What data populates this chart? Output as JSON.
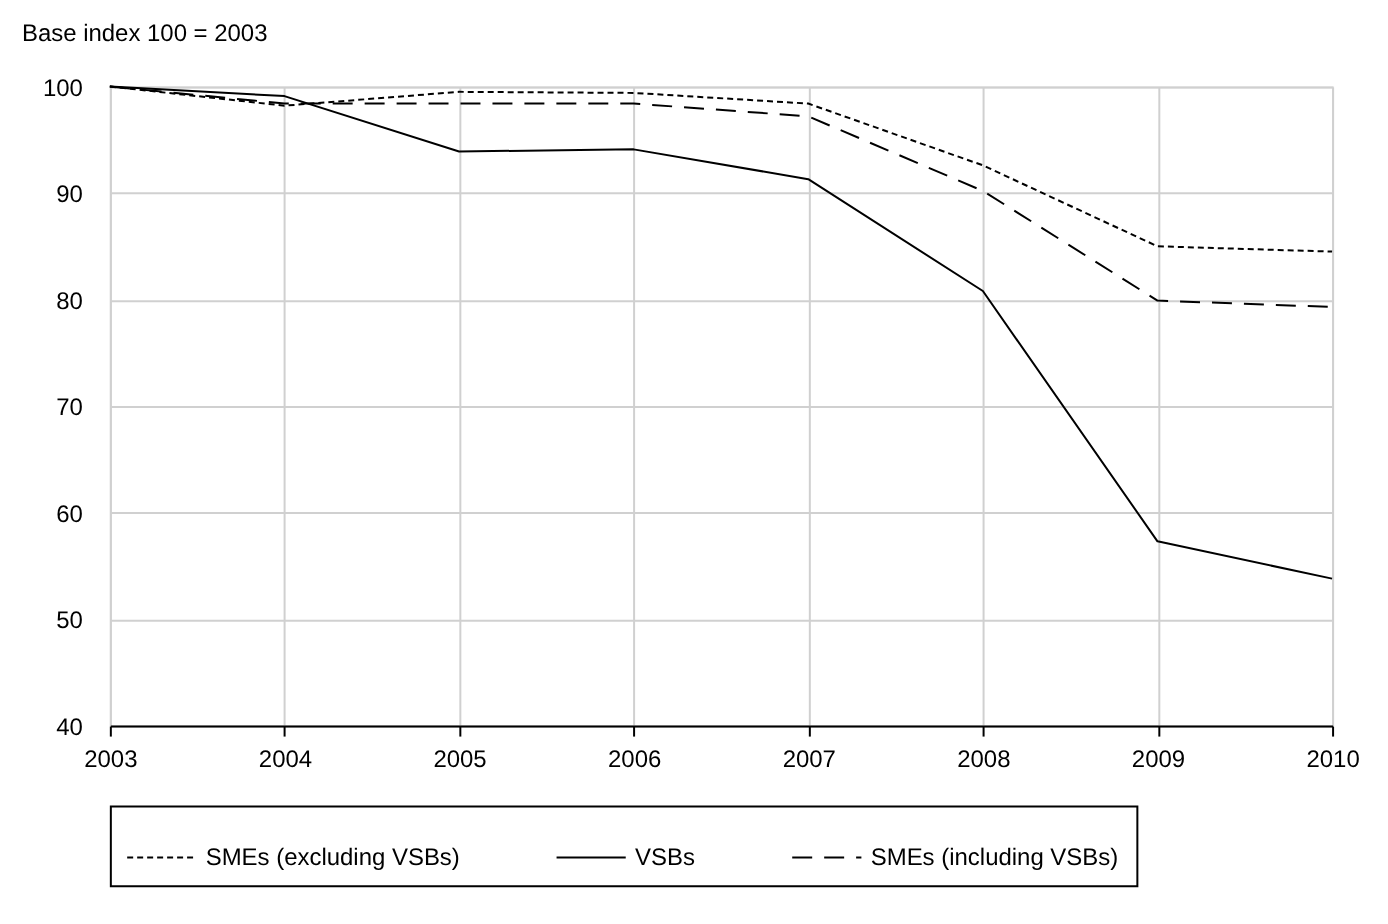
{
  "chart_data": {
    "type": "line",
    "title": "Base index 100 = 2003",
    "x": [
      2003,
      2004,
      2005,
      2006,
      2007,
      2008,
      2009,
      2010
    ],
    "series": [
      {
        "name": "SMEs (excluding VSBs)",
        "color": "#000000",
        "line_style": "dotted",
        "values": [
          100,
          98.2,
          99.5,
          99.4,
          98.4,
          92.6,
          85.0,
          84.5
        ]
      },
      {
        "name": "VSBs",
        "color": "#000000",
        "line_style": "solid",
        "values": [
          100,
          99.1,
          93.9,
          94.1,
          91.3,
          80.8,
          57.3,
          53.8
        ]
      },
      {
        "name": "SMEs (including VSBs)",
        "color": "#000000",
        "line_style": "dashed",
        "values": [
          100,
          98.4,
          98.4,
          98.4,
          97.2,
          90.2,
          79.9,
          79.3
        ]
      }
    ],
    "xlim": [
      2003,
      2010
    ],
    "xticks": [
      2003,
      2004,
      2005,
      2006,
      2007,
      2008,
      2009,
      2010
    ],
    "ylim": [
      40,
      100
    ],
    "yticks": [
      40,
      50,
      60,
      70,
      80,
      90,
      100
    ],
    "grid": true,
    "legend": "bottom",
    "marker": "none"
  }
}
